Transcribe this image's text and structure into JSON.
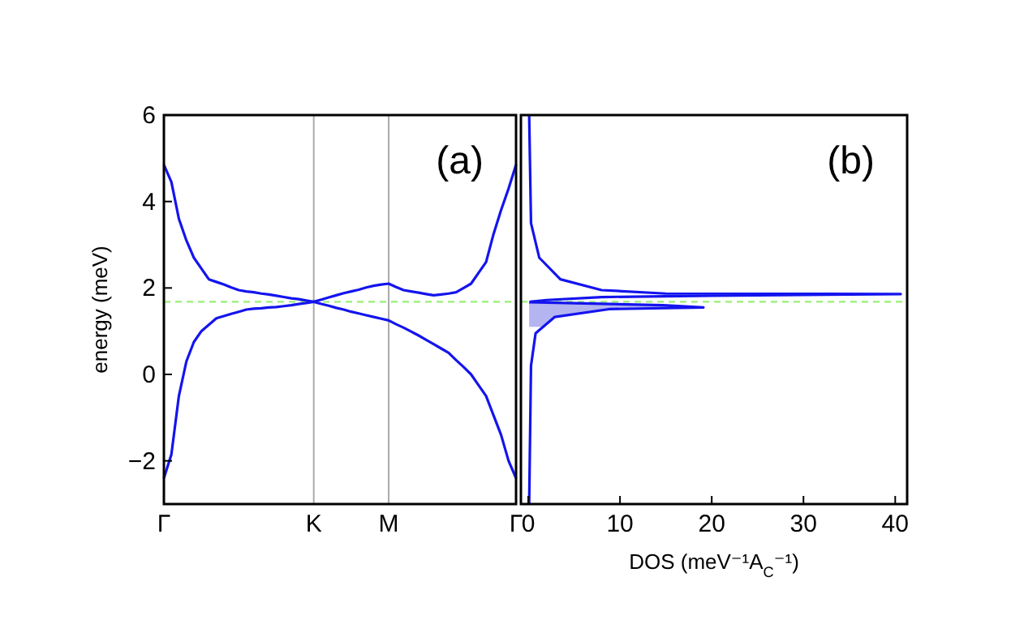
{
  "chart_data": [
    {
      "type": "line",
      "ylabel": "energy (meV)",
      "annotations": [
        "(a)"
      ],
      "categories": [
        "Γ",
        null,
        null,
        null,
        null,
        null,
        null,
        null,
        null,
        null,
        null,
        null,
        null,
        null,
        null,
        null,
        null,
        null,
        null,
        null,
        "K",
        null,
        null,
        null,
        null,
        null,
        null,
        null,
        null,
        null,
        "M",
        null,
        null,
        null,
        null,
        null,
        null,
        null,
        null,
        null,
        null,
        null,
        null,
        null,
        null,
        null,
        null,
        "Γ"
      ],
      "ylim": [
        -3,
        6
      ],
      "yticks": [
        -2,
        0,
        2,
        4,
        6
      ],
      "grid": "x",
      "marker": "none",
      "line_style": "solid",
      "ref_lines": [
        {
          "axis": "y",
          "value": 1.68,
          "color": "#99ee77",
          "line_style": "dashed"
        }
      ],
      "series": [
        {
          "color": "#1414ee",
          "values": [
            4.85,
            4.45,
            3.6,
            3.1,
            2.7,
            2.45,
            2.2,
            2.14,
            2.08,
            2.01,
            1.95,
            1.92,
            1.9,
            1.87,
            1.85,
            1.82,
            1.79,
            1.76,
            1.74,
            1.71,
            1.68,
            1.73,
            1.78,
            1.83,
            1.88,
            1.92,
            1.96,
            2.01,
            2.05,
            2.08,
            2.1,
            2.02,
            1.95,
            1.92,
            1.89,
            1.86,
            1.83,
            1.85,
            1.87,
            1.9,
            2.0,
            2.1,
            2.35,
            2.6,
            3.25,
            3.8,
            4.3,
            4.85
          ]
        },
        {
          "color": "#1414ee",
          "values": [
            -2.4,
            -1.85,
            -0.5,
            0.3,
            0.75,
            1.0,
            1.15,
            1.3,
            1.35,
            1.4,
            1.45,
            1.5,
            1.52,
            1.53,
            1.55,
            1.56,
            1.58,
            1.6,
            1.63,
            1.65,
            1.68,
            1.63,
            1.59,
            1.54,
            1.5,
            1.45,
            1.41,
            1.37,
            1.33,
            1.29,
            1.25,
            1.16,
            1.08,
            0.99,
            0.9,
            0.8,
            0.7,
            0.6,
            0.5,
            0.33,
            0.17,
            0,
            -0.25,
            -0.5,
            -0.95,
            -1.4,
            -2.0,
            -2.4
          ]
        }
      ]
    },
    {
      "type": "line",
      "xlabel": "DOS (meV⁻¹A$_{C}$⁻¹)",
      "annotations": [
        "(b)"
      ],
      "xlim": [
        -0.8,
        41.3
      ],
      "xticks": [
        0,
        10,
        20,
        30,
        40
      ],
      "ylim": [
        -3,
        6
      ],
      "tick_labels": "x",
      "marker": "none",
      "line_style": "solid",
      "ref_lines": [
        {
          "axis": "y",
          "value": 1.68,
          "color": "#99ee77",
          "line_style": "dashed"
        }
      ],
      "bands": [
        {
          "axis": "y",
          "from": 1.1,
          "to": 1.66,
          "color": "#b4b4f0"
        }
      ],
      "series": [
        {
          "color": "#1414ee",
          "x": [
            0.1,
            0.3,
            1.2,
            3.5,
            8,
            15,
            40.6,
            20,
            8,
            2,
            0.2
          ],
          "values": [
            6,
            3.5,
            2.7,
            2.2,
            1.95,
            1.87,
            1.86,
            1.82,
            1.79,
            1.72,
            1.68
          ]
        },
        {
          "color": "#1414ee",
          "x": [
            0.1,
            0.3,
            0.8,
            2.9,
            8.8,
            19.1,
            14.7,
            9,
            0.1
          ],
          "values": [
            -3,
            0.2,
            0.95,
            1.33,
            1.51,
            1.55,
            1.6,
            1.63,
            1.67
          ]
        }
      ]
    }
  ]
}
